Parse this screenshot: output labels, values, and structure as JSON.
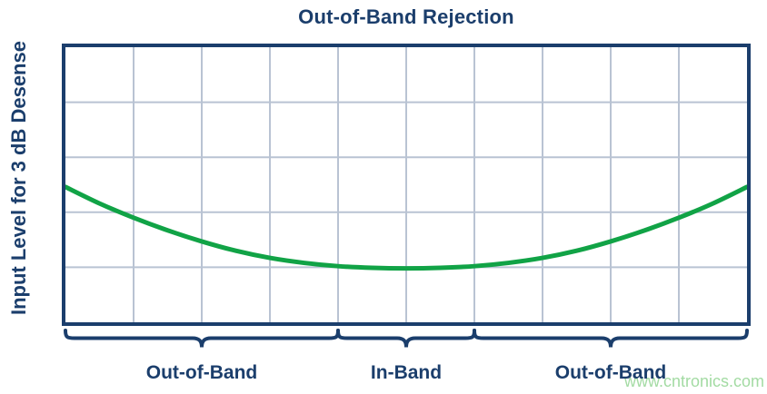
{
  "title": "Out-of-Band Rejection",
  "y_axis_label": "Input Level for 3 dB Desense",
  "watermark": "www.cntronics.com",
  "colors": {
    "navy": "#1b3e6c",
    "grid": "#b9c3d3",
    "curve": "#11a346",
    "watermark": "#a3dba3",
    "background": "#ffffff"
  },
  "chart_data": {
    "type": "line",
    "title": "Out-of-Band Rejection",
    "xlabel": "",
    "ylabel": "Input Level for 3 dB Desense",
    "grid": {
      "columns": 10,
      "rows": 5,
      "visible": true,
      "axis_ticks": "none",
      "tick_labels": "none"
    },
    "x_range": [
      0,
      10
    ],
    "y_range": [
      0,
      5
    ],
    "legend": "none",
    "series": [
      {
        "name": "input-level-for-3db-desense",
        "color": "#11a346",
        "x": [
          0,
          0.5,
          1,
          1.5,
          2,
          2.5,
          3,
          3.5,
          4,
          4.5,
          5,
          5.5,
          6,
          6.5,
          7,
          7.5,
          8,
          8.5,
          9,
          9.5,
          10
        ],
        "y": [
          2.46,
          2.16,
          1.9,
          1.67,
          1.47,
          1.3,
          1.17,
          1.08,
          1.02,
          0.99,
          0.98,
          0.99,
          1.02,
          1.08,
          1.17,
          1.3,
          1.47,
          1.67,
          1.9,
          2.16,
          2.46
        ]
      }
    ],
    "bands": [
      {
        "label": "Out-of-Band",
        "from": 0,
        "to": 4
      },
      {
        "label": "In-Band",
        "from": 4,
        "to": 6
      },
      {
        "label": "Out-of-Band",
        "from": 6,
        "to": 10
      }
    ],
    "annotation_style": "underbraces below x-axis"
  }
}
